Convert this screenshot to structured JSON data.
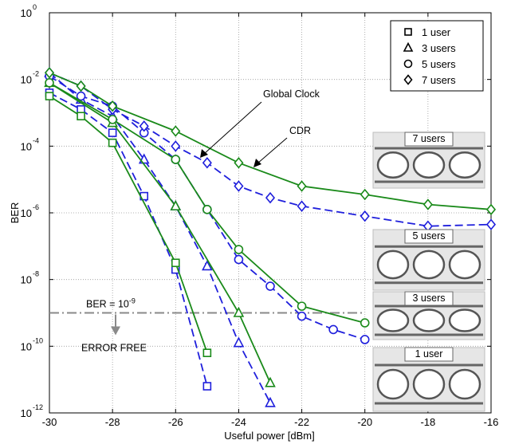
{
  "chart_data": {
    "type": "line",
    "title": "",
    "xlabel": "Useful power",
    "xlabel_unit": "[dBm]",
    "ylabel": "BER",
    "xlim": [
      -30,
      -16
    ],
    "ylim_log10": [
      -12,
      0
    ],
    "yscale": "log",
    "grid": true,
    "legend_position": "top-right",
    "x_ticks": [
      "-30",
      "-28",
      "-26",
      "-24",
      "-22",
      "-20",
      "-18",
      "-16"
    ],
    "y_ticks": [
      {
        "base": "10",
        "exp": "0",
        "log": 0
      },
      {
        "base": "10",
        "exp": "-2",
        "log": -2
      },
      {
        "base": "10",
        "exp": "-4",
        "log": -4
      },
      {
        "base": "10",
        "exp": "-6",
        "log": -6
      },
      {
        "base": "10",
        "exp": "-8",
        "log": -8
      },
      {
        "base": "10",
        "exp": "-10",
        "log": -10
      },
      {
        "base": "10",
        "exp": "-12",
        "log": -12
      }
    ],
    "legend": [
      {
        "label": "1 user",
        "marker": "square"
      },
      {
        "label": "3 users",
        "marker": "triangle"
      },
      {
        "label": "5 users",
        "marker": "circle"
      },
      {
        "label": "7 users",
        "marker": "diamond"
      }
    ],
    "series": [
      {
        "group": "Global Clock",
        "marker": "square",
        "color": "#1f1fdc",
        "dash": true,
        "x": [
          -30,
          -29,
          -28,
          -27,
          -26,
          -25
        ],
        "log10_y": [
          -2.4,
          -2.9,
          -3.6,
          -5.5,
          -7.7,
          -11.2
        ]
      },
      {
        "group": "CDR",
        "marker": "square",
        "color": "#1a8a1a",
        "dash": false,
        "x": [
          -30,
          -29,
          -28,
          -26,
          -25
        ],
        "log10_y": [
          -2.5,
          -3.1,
          -3.9,
          -7.5,
          -10.2
        ]
      },
      {
        "group": "Global Clock",
        "marker": "triangle",
        "color": "#1f1fdc",
        "dash": true,
        "x": [
          -30,
          -29,
          -28,
          -27,
          -26,
          -25,
          -24,
          -23
        ],
        "log10_y": [
          -1.8,
          -2.6,
          -3.1,
          -4.4,
          -5.8,
          -7.6,
          -9.9,
          -11.7
        ]
      },
      {
        "group": "CDR",
        "marker": "triangle",
        "color": "#1a8a1a",
        "dash": false,
        "x": [
          -30,
          -28,
          -26,
          -24,
          -23
        ],
        "log10_y": [
          -2.1,
          -3.3,
          -5.8,
          -9.0,
          -11.1
        ]
      },
      {
        "group": "Global Clock",
        "marker": "circle",
        "color": "#1f1fdc",
        "dash": true,
        "x": [
          -30,
          -29,
          -28,
          -27,
          -26,
          -25,
          -24,
          -23,
          -22,
          -21,
          -20
        ],
        "log10_y": [
          -1.9,
          -2.5,
          -2.8,
          -3.6,
          -4.4,
          -5.9,
          -7.4,
          -8.2,
          -9.1,
          -9.5,
          -9.8
        ]
      },
      {
        "group": "CDR",
        "marker": "circle",
        "color": "#1a8a1a",
        "dash": false,
        "x": [
          -30,
          -28,
          -26,
          -25,
          -24,
          -22,
          -20
        ],
        "log10_y": [
          -2.1,
          -3.2,
          -4.4,
          -5.9,
          -7.1,
          -8.8,
          -9.3
        ]
      },
      {
        "group": "Global Clock",
        "marker": "diamond",
        "color": "#1f1fdc",
        "dash": true,
        "x": [
          -30,
          -29,
          -28,
          -27,
          -26,
          -25,
          -24,
          -23,
          -22,
          -20,
          -18,
          -16
        ],
        "log10_y": [
          -1.8,
          -2.2,
          -2.9,
          -3.4,
          -4.0,
          -4.5,
          -5.2,
          -5.55,
          -5.8,
          -6.1,
          -6.4,
          -6.35
        ]
      },
      {
        "group": "CDR",
        "marker": "diamond",
        "color": "#1a8a1a",
        "dash": false,
        "x": [
          -30,
          -29,
          -28,
          -26,
          -24,
          -22,
          -20,
          -18,
          -16
        ],
        "log10_y": [
          -1.8,
          -2.2,
          -2.8,
          -3.55,
          -4.5,
          -5.2,
          -5.45,
          -5.75,
          -5.9
        ]
      }
    ],
    "threshold": {
      "log10_y": -9,
      "label_base": "BER = 10",
      "label_exp": "-9",
      "note": "ERROR FREE"
    },
    "annotations": [
      "Global Clock",
      "CDR"
    ],
    "eye_diagram_labels": [
      "7 users",
      "5 users",
      "3 users",
      "1 user"
    ]
  }
}
